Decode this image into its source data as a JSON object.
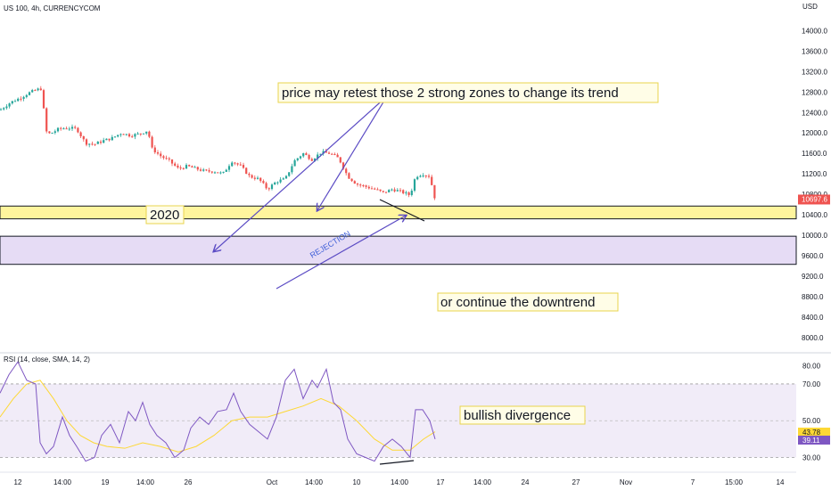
{
  "header": {
    "symbol": "US 100, 4h, CURRENCYCOM"
  },
  "axis": {
    "currency": "USD"
  },
  "colors": {
    "up": "#26a69a",
    "down": "#ef5350",
    "zone_yellow": "#fff59d",
    "zone_purple": "#e6dcf5",
    "rsi_line": "#7e57c2",
    "rsi_ma": "#fdd835",
    "arrow": "#5b4bc4"
  },
  "chart_data": [
    {
      "type": "candlestick",
      "ylim": [
        7700,
        14600
      ],
      "y_ticks": [
        "14000.0",
        "13600.0",
        "13200.0",
        "12800.0",
        "12400.0",
        "12000.0",
        "11600.0",
        "11200.0",
        "10800.0",
        "10400.0",
        "10000.0",
        "9600.0",
        "9200.0",
        "8800.0",
        "8400.0",
        "8000.0"
      ],
      "last_price": "10697.6",
      "close_path": [
        [
          0,
          12450
        ],
        [
          12,
          12600
        ],
        [
          22,
          12680
        ],
        [
          32,
          12780
        ],
        [
          42,
          12850
        ],
        [
          48,
          12870
        ],
        [
          50,
          12050
        ],
        [
          56,
          11980
        ],
        [
          66,
          12080
        ],
        [
          76,
          12100
        ],
        [
          86,
          12080
        ],
        [
          96,
          11800
        ],
        [
          106,
          11780
        ],
        [
          116,
          11850
        ],
        [
          126,
          11900
        ],
        [
          136,
          12000
        ],
        [
          146,
          11950
        ],
        [
          156,
          11980
        ],
        [
          166,
          12050
        ],
        [
          170,
          11700
        ],
        [
          180,
          11550
        ],
        [
          190,
          11450
        ],
        [
          200,
          11300
        ],
        [
          210,
          11350
        ],
        [
          220,
          11300
        ],
        [
          230,
          11250
        ],
        [
          240,
          11250
        ],
        [
          250,
          11200
        ],
        [
          260,
          11450
        ],
        [
          270,
          11350
        ],
        [
          280,
          11150
        ],
        [
          290,
          11100
        ],
        [
          300,
          10900
        ],
        [
          310,
          11050
        ],
        [
          320,
          11100
        ],
        [
          330,
          11450
        ],
        [
          340,
          11600
        ],
        [
          350,
          11480
        ],
        [
          360,
          11620
        ],
        [
          370,
          11600
        ],
        [
          380,
          11500
        ],
        [
          390,
          11150
        ],
        [
          400,
          11000
        ],
        [
          410,
          10950
        ],
        [
          420,
          10900
        ],
        [
          430,
          10830
        ],
        [
          440,
          10900
        ],
        [
          450,
          10850
        ],
        [
          460,
          10780
        ],
        [
          466,
          11150
        ],
        [
          474,
          11200
        ],
        [
          482,
          11150
        ],
        [
          488,
          10700
        ]
      ],
      "zones": [
        {
          "label": "2020",
          "from": 10320,
          "to": 10570
        },
        {
          "label": "",
          "from": 9430,
          "to": 9980
        }
      ],
      "annotations": [
        {
          "text": "price may retest those 2 strong zones to change its trend"
        },
        {
          "text": "or continue the downtrend"
        },
        {
          "text": "REJECTION"
        }
      ]
    },
    {
      "type": "line",
      "title": "RSI (14, close, SMA, 14, 2)",
      "ylim": [
        22,
        85
      ],
      "y_ticks": [
        "80.00",
        "70.00",
        "50.00",
        "30.00"
      ],
      "band": [
        30,
        70
      ],
      "current": {
        "rsi": "39.11",
        "ma": "43.78"
      },
      "series": [
        {
          "name": "",
          "points": [
            [
              0,
              65
            ],
            [
              10,
              75
            ],
            [
              20,
              82
            ],
            [
              30,
              72
            ],
            [
              40,
              70
            ],
            [
              45,
              38
            ],
            [
              52,
              32
            ],
            [
              60,
              36
            ],
            [
              70,
              52
            ],
            [
              78,
              42
            ],
            [
              86,
              36
            ],
            [
              96,
              28
            ],
            [
              106,
              30
            ],
            [
              114,
              42
            ],
            [
              124,
              48
            ],
            [
              134,
              38
            ],
            [
              144,
              55
            ],
            [
              152,
              50
            ],
            [
              160,
              60
            ],
            [
              168,
              48
            ],
            [
              176,
              42
            ],
            [
              186,
              38
            ],
            [
              196,
              30
            ],
            [
              206,
              34
            ],
            [
              214,
              46
            ],
            [
              224,
              52
            ],
            [
              234,
              48
            ],
            [
              244,
              55
            ],
            [
              254,
              56
            ],
            [
              262,
              65
            ],
            [
              270,
              55
            ],
            [
              280,
              48
            ],
            [
              290,
              44
            ],
            [
              300,
              40
            ],
            [
              310,
              52
            ],
            [
              320,
              72
            ],
            [
              330,
              78
            ],
            [
              340,
              62
            ],
            [
              350,
              72
            ],
            [
              356,
              68
            ],
            [
              366,
              78
            ],
            [
              374,
              60
            ],
            [
              382,
              56
            ],
            [
              390,
              40
            ],
            [
              400,
              32
            ],
            [
              410,
              30
            ],
            [
              420,
              28
            ],
            [
              430,
              36
            ],
            [
              440,
              40
            ],
            [
              450,
              36
            ],
            [
              460,
              30
            ],
            [
              466,
              56
            ],
            [
              474,
              56
            ],
            [
              482,
              50
            ],
            [
              488,
              40
            ]
          ]
        },
        {
          "name": "",
          "points": [
            [
              0,
              52
            ],
            [
              15,
              62
            ],
            [
              30,
              70
            ],
            [
              45,
              72
            ],
            [
              60,
              62
            ],
            [
              75,
              50
            ],
            [
              90,
              42
            ],
            [
              105,
              38
            ],
            [
              120,
              36
            ],
            [
              140,
              35
            ],
            [
              160,
              38
            ],
            [
              180,
              36
            ],
            [
              200,
              33
            ],
            [
              220,
              36
            ],
            [
              240,
              42
            ],
            [
              260,
              50
            ],
            [
              280,
              52
            ],
            [
              300,
              52
            ],
            [
              320,
              55
            ],
            [
              340,
              58
            ],
            [
              360,
              62
            ],
            [
              380,
              58
            ],
            [
              400,
              50
            ],
            [
              420,
              40
            ],
            [
              440,
              34
            ],
            [
              460,
              34
            ],
            [
              475,
              40
            ],
            [
              488,
              44
            ]
          ]
        }
      ],
      "annotations": [
        {
          "text": "bullish divergence"
        }
      ]
    }
  ],
  "x_axis": {
    "ticks": [
      "12",
      "14:00",
      "19",
      "14:00",
      "26",
      "Oct",
      "14:00",
      "10",
      "14:00",
      "17",
      "14:00",
      "24",
      "27",
      "Nov",
      "7",
      "15:00",
      "14"
    ]
  }
}
